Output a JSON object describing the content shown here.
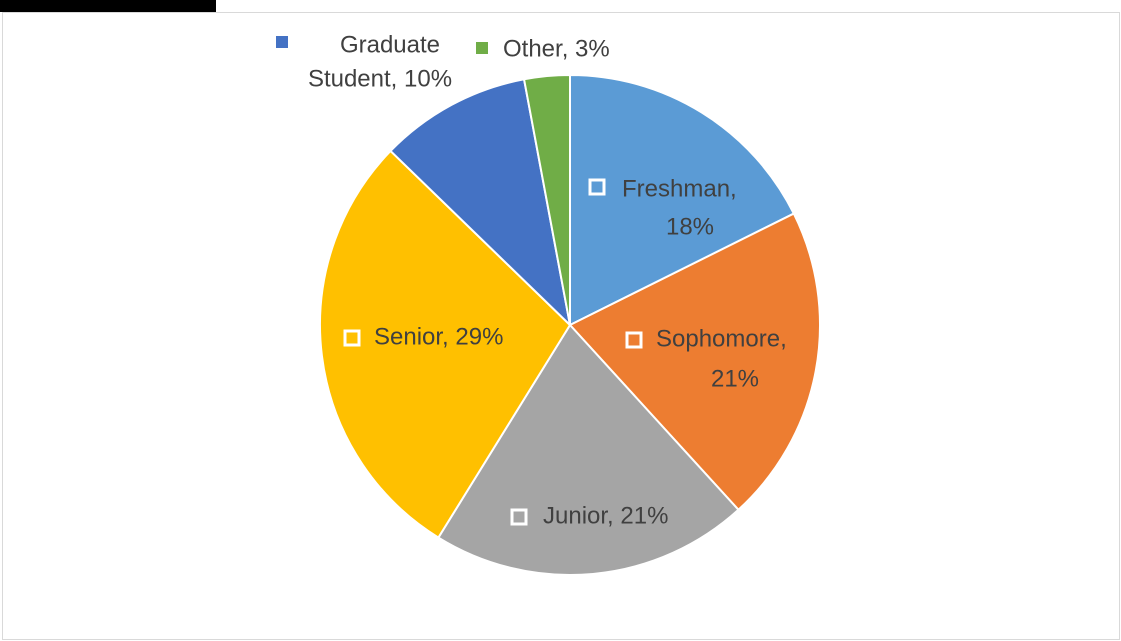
{
  "chart_data": {
    "type": "pie",
    "values": [
      18,
      21,
      21,
      29,
      10,
      3
    ],
    "value_labels": [
      [
        "Freshman,",
        "18%"
      ],
      [
        "Sophomore,",
        "21%"
      ],
      [
        "Junior, 21%"
      ],
      [
        "Senior, 29%"
      ],
      [
        "Graduate",
        "Student, 10%"
      ],
      [
        "Other, 3%"
      ]
    ],
    "colors": [
      "#5b9bd5",
      "#ed7d31",
      "#a5a5a5",
      "#ffc000",
      "#4472c4",
      "#70ad47"
    ]
  }
}
